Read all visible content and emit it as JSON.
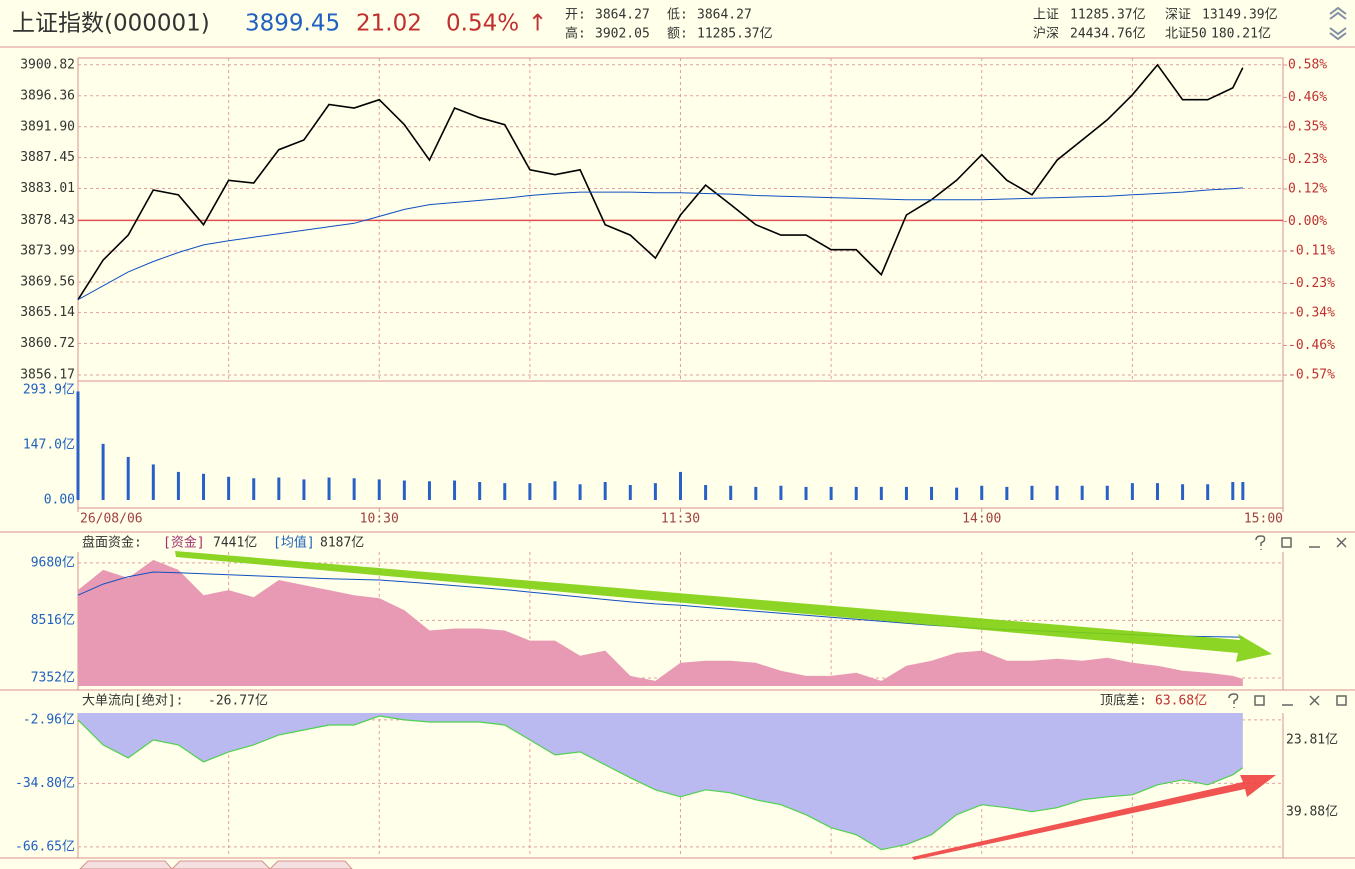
{
  "header": {
    "name": "上证指数(000001)",
    "price": "3899.45",
    "change": "21.02",
    "change_pct": "0.54%",
    "arrow": "↑",
    "stats": [
      [
        "开:",
        "3864.27"
      ],
      [
        "低:",
        "3864.27"
      ],
      [
        "高:",
        "3902.05"
      ],
      [
        "额:",
        "11285.37亿"
      ],
      [
        "上证",
        "11285.37亿"
      ],
      [
        "深证",
        "13149.39亿"
      ],
      [
        "沪深",
        "24434.76亿"
      ],
      [
        "北证50",
        "180.21亿"
      ]
    ]
  },
  "chart_data": [
    {
      "type": "line",
      "x": [
        0,
        5,
        10,
        15,
        20,
        25,
        30,
        35,
        40,
        45,
        50,
        55,
        60,
        65,
        70,
        75,
        80,
        85,
        90,
        95,
        100,
        105,
        110,
        115,
        120,
        125,
        130,
        135,
        140,
        145,
        150,
        155,
        160,
        165,
        170,
        175,
        180,
        185,
        190,
        195,
        200,
        205,
        210,
        215,
        220,
        225,
        230,
        232
      ],
      "xlim": [
        0,
        240
      ],
      "xticks": [
        {
          "value": 0,
          "label": "26/08/06"
        },
        {
          "value": 30,
          "label": null
        },
        {
          "value": 60,
          "label": "10:30"
        },
        {
          "value": 90,
          "label": null
        },
        {
          "value": 120,
          "label": "11:30"
        },
        {
          "value": 150,
          "label": null
        },
        {
          "value": 180,
          "label": "14:00"
        },
        {
          "value": 210,
          "label": null
        },
        {
          "value": 240,
          "label": "15:00"
        }
      ],
      "ylim": [
        3855.3,
        3901.8
      ],
      "yticks": [
        3856.17,
        3860.72,
        3865.14,
        3869.56,
        3873.99,
        3878.43,
        3883.01,
        3887.45,
        {
          "value": 3891.9,
          "label": "3891.90"
        },
        3896.36,
        3900.82
      ],
      "prev_close": 3878.43,
      "y2lim": [
        -0.592,
        0.606
      ],
      "y2ticks": [
        {
          "value": -0.57,
          "label": "-0.57%"
        },
        {
          "value": -0.46,
          "label": "-0.46%"
        },
        {
          "value": -0.34,
          "label": "-0.34%"
        },
        {
          "value": -0.23,
          "label": "-0.23%"
        },
        {
          "value": -0.11,
          "label": "-0.11%"
        },
        {
          "value": 0,
          "label": "0.00%"
        },
        {
          "value": 0.12,
          "label": "0.12%"
        },
        {
          "value": 0.23,
          "label": "0.23%"
        },
        {
          "value": 0.35,
          "label": "0.35%"
        },
        {
          "value": 0.46,
          "label": "0.46%"
        },
        {
          "value": 0.58,
          "label": "0.58%"
        }
      ],
      "grid": true,
      "series": [
        {
          "color": "#000000",
          "width": 1.6,
          "values": [
            3867.0,
            3872.7,
            3876.3,
            3882.8,
            3882.1,
            3877.8,
            3884.2,
            3883.8,
            3888.6,
            3890.0,
            3895.1,
            3894.6,
            3895.8,
            3892.2,
            3887.1,
            3894.6,
            3893.2,
            3892.2,
            3885.7,
            3885.0,
            3885.7,
            3877.8,
            3876.3,
            3873.0,
            3879.2,
            3883.5,
            3880.7,
            3877.8,
            3876.3,
            3876.3,
            3874.2,
            3874.2,
            3870.6,
            3879.2,
            3881.4,
            3884.2,
            3887.9,
            3884.2,
            3882.1,
            3887.1,
            3890.0,
            3892.9,
            3896.5,
            3900.8,
            3895.8,
            3895.8,
            3897.5,
            3900.4
          ]
        },
        {
          "color": "#1050c0",
          "width": 1,
          "values": [
            3867.0,
            3869.0,
            3871.0,
            3872.5,
            3873.8,
            3874.9,
            3875.5,
            3876.0,
            3876.5,
            3877.0,
            3877.5,
            3878.0,
            3879.0,
            3880.0,
            3880.7,
            3881.0,
            3881.3,
            3881.6,
            3882.0,
            3882.3,
            3882.5,
            3882.5,
            3882.5,
            3882.4,
            3882.4,
            3882.3,
            3882.2,
            3882.0,
            3881.9,
            3881.8,
            3881.7,
            3881.6,
            3881.5,
            3881.4,
            3881.4,
            3881.4,
            3881.4,
            3881.5,
            3881.6,
            3881.7,
            3881.8,
            3881.9,
            3882.1,
            3882.3,
            3882.5,
            3882.8,
            3883.0,
            3883.1
          ]
        }
      ]
    },
    {
      "type": "bar",
      "x": [
        0,
        5,
        10,
        15,
        20,
        25,
        30,
        35,
        40,
        45,
        50,
        55,
        60,
        65,
        70,
        75,
        80,
        85,
        90,
        95,
        100,
        105,
        110,
        115,
        120,
        125,
        130,
        135,
        140,
        145,
        150,
        155,
        160,
        165,
        170,
        175,
        180,
        185,
        190,
        195,
        200,
        205,
        210,
        215,
        220,
        225,
        230,
        232
      ],
      "xlim": [
        0,
        240
      ],
      "ylim": [
        -21.4,
        317.9
      ],
      "yticks": [
        {
          "value": 0,
          "label": "0.00"
        },
        {
          "value": 147.0,
          "label": "147.0亿"
        },
        {
          "value": 293.9,
          "label": "293.9亿"
        }
      ],
      "color": "#2860c8",
      "values": [
        290,
        150,
        115,
        95,
        75,
        70,
        62,
        58,
        60,
        55,
        60,
        58,
        55,
        52,
        50,
        52,
        48,
        45,
        45,
        50,
        42,
        48,
        40,
        45,
        75,
        40,
        38,
        35,
        38,
        35,
        35,
        35,
        35,
        35,
        35,
        33,
        38,
        35,
        38,
        38,
        38,
        38,
        45,
        45,
        42,
        42,
        48,
        48
      ]
    },
    {
      "type": "area",
      "title": "盘面资金:",
      "x": [
        0,
        5,
        10,
        15,
        20,
        25,
        30,
        35,
        40,
        45,
        50,
        55,
        60,
        65,
        70,
        75,
        80,
        85,
        90,
        95,
        100,
        105,
        110,
        115,
        120,
        125,
        130,
        135,
        140,
        145,
        150,
        155,
        160,
        165,
        170,
        175,
        180,
        185,
        190,
        195,
        200,
        205,
        210,
        215,
        220,
        225,
        230,
        232
      ],
      "xlim": [
        0,
        240
      ],
      "ylim": [
        7190,
        9900
      ],
      "yticks": [
        {
          "value": 7352,
          "label": "7352亿"
        },
        {
          "value": 8516,
          "label": "8516亿"
        },
        {
          "value": 9680,
          "label": "9680亿"
        }
      ],
      "grid": true,
      "series": [
        {
          "name": "[资金]",
          "readout": "7441亿",
          "color": "#e89ab4",
          "fill_to": "bottom",
          "values": [
            9129,
            9537,
            9374,
            9741,
            9537,
            9027,
            9129,
            8986,
            9333,
            9231,
            9129,
            9027,
            8966,
            8721,
            8313,
            8353,
            8353,
            8313,
            8109,
            8109,
            7803,
            7905,
            7395,
            7293,
            7660,
            7701,
            7701,
            7660,
            7497,
            7395,
            7395,
            7456,
            7293,
            7599,
            7701,
            7864,
            7905,
            7701,
            7701,
            7742,
            7701,
            7762,
            7660,
            7599,
            7497,
            7456,
            7395,
            7334
          ]
        },
        {
          "name": "[均值]",
          "readout": "8187亿",
          "color": "#1050c0",
          "values": [
            9027,
            9250,
            9400,
            9496,
            9480,
            9460,
            9440,
            9420,
            9400,
            9380,
            9360,
            9345,
            9333,
            9300,
            9260,
            9220,
            9180,
            9140,
            9090,
            9040,
            8990,
            8940,
            8890,
            8850,
            8823,
            8780,
            8740,
            8700,
            8660,
            8620,
            8580,
            8540,
            8500,
            8460,
            8420,
            8390,
            8353,
            8330,
            8310,
            8290,
            8270,
            8250,
            8230,
            8210,
            8200,
            8190,
            8180,
            8175
          ]
        }
      ]
    },
    {
      "type": "area",
      "title": "大单流向[绝对]:",
      "spread_label": "顶底差:",
      "spread_value": "63.68亿",
      "side_labels": [
        "23.81亿",
        "39.88亿"
      ],
      "x": [
        0,
        5,
        10,
        15,
        20,
        25,
        30,
        35,
        40,
        45,
        50,
        55,
        60,
        65,
        70,
        75,
        80,
        85,
        90,
        95,
        100,
        105,
        110,
        115,
        120,
        125,
        130,
        135,
        140,
        145,
        150,
        155,
        160,
        165,
        170,
        175,
        180,
        185,
        190,
        195,
        200,
        205,
        210,
        215,
        220,
        225,
        230,
        232
      ],
      "xlim": [
        0,
        240
      ],
      "ylim": [
        -71.7,
        0.5
      ],
      "yticks": [
        {
          "value": -66.65,
          "label": "-66.65亿"
        },
        {
          "value": -34.8,
          "label": "-34.80亿"
        },
        {
          "value": -2.96,
          "label": "-2.96亿"
        }
      ],
      "grid": true,
      "series": [
        {
          "readout": "-26.77亿",
          "color": "#50d050",
          "fill": "#babaf0",
          "fill_to": "top",
          "values": [
            -2.96,
            -15.5,
            -22.0,
            -13.0,
            -15.5,
            -24.0,
            -19.0,
            -15.5,
            -10.5,
            -8.0,
            -5.5,
            -5.5,
            -1.0,
            -2.96,
            -4.0,
            -4.0,
            -4.0,
            -5.5,
            -13.0,
            -20.5,
            -19.0,
            -25.5,
            -32.0,
            -38.0,
            -41.5,
            -38.0,
            -39.5,
            -43.0,
            -45.5,
            -50.5,
            -57.0,
            -60.5,
            -68.0,
            -65.5,
            -60.5,
            -50.5,
            -45.5,
            -47.0,
            -49.0,
            -47.0,
            -43.0,
            -41.5,
            -40.5,
            -35.5,
            -33.0,
            -35.5,
            -30.5,
            -27.0
          ]
        }
      ]
    }
  ]
}
